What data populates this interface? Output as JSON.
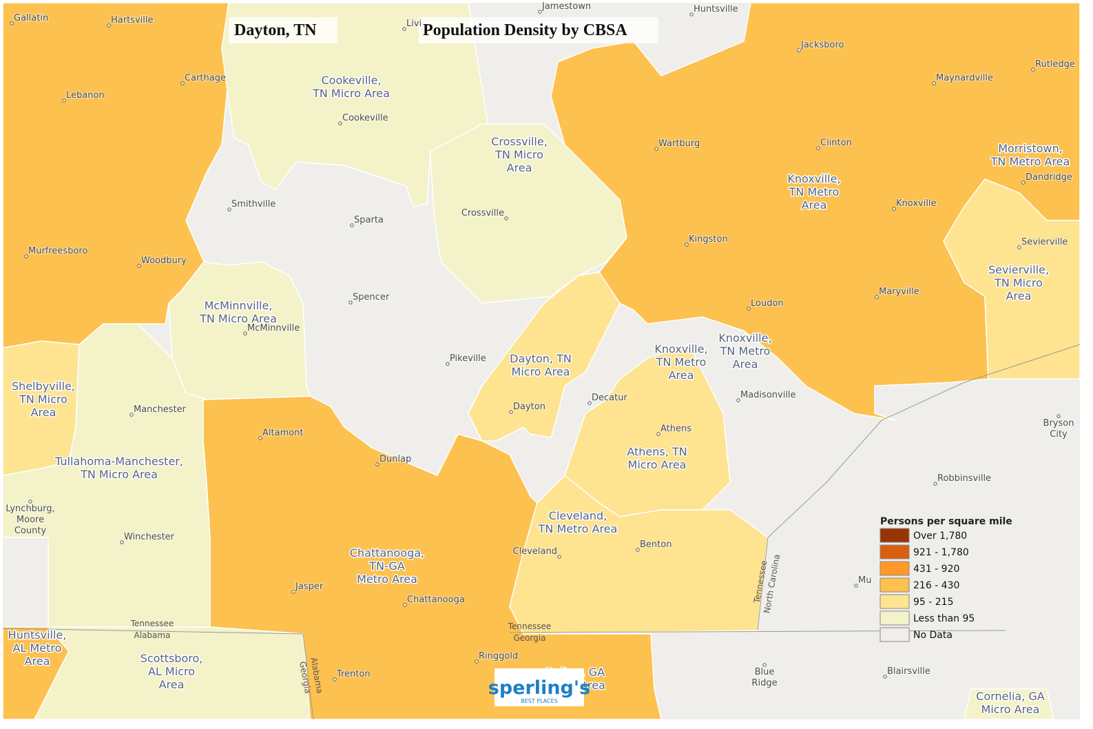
{
  "header": {
    "place": "Dayton, TN",
    "title": "Population Density by CBSA"
  },
  "legend": {
    "title": "Persons per square mile",
    "items": [
      {
        "label": "Over 1,780",
        "color": "#993404"
      },
      {
        "label": "921 - 1,780",
        "color": "#d95f0e"
      },
      {
        "label": "431 - 920",
        "color": "#fe9929"
      },
      {
        "label": "216 - 430",
        "color": "#fdc150"
      },
      {
        "label": "95 - 215",
        "color": "#fee391"
      },
      {
        "label": "Less than 95",
        "color": "#f3f2c9"
      },
      {
        "label": "No Data",
        "color": "#efeeea"
      }
    ]
  },
  "areas": [
    {
      "lines": [
        "Cookeville,",
        "TN Micro Area"
      ]
    },
    {
      "lines": [
        "Crossville,",
        "TN Micro",
        "Area"
      ]
    },
    {
      "lines": [
        "Knoxville,",
        "TN Metro",
        "Area"
      ]
    },
    {
      "lines": [
        "Morristown,",
        "TN Metro Area"
      ]
    },
    {
      "lines": [
        "Sevierville,",
        "TN Micro",
        "Area"
      ]
    },
    {
      "lines": [
        "McMinnville,",
        "TN Micro Area"
      ]
    },
    {
      "lines": [
        "Dayton, TN",
        "Micro Area"
      ]
    },
    {
      "lines": [
        "Knoxville,",
        "TN Metro",
        "Area"
      ]
    },
    {
      "lines": [
        "Knoxville,",
        "TN Metro",
        "Area"
      ]
    },
    {
      "lines": [
        "Shelbyville,",
        "TN Micro",
        "Area"
      ]
    },
    {
      "lines": [
        "Tullahoma-Manchester,",
        "TN Micro Area"
      ]
    },
    {
      "lines": [
        "Athens, TN",
        "Micro Area"
      ]
    },
    {
      "lines": [
        "Cleveland,",
        "TN Metro Area"
      ]
    },
    {
      "lines": [
        "Chattanooga,",
        "TN-GA",
        "Metro Area"
      ]
    },
    {
      "lines": [
        "Huntsville,",
        "AL Metro",
        "Area"
      ]
    },
    {
      "lines": [
        "Scottsboro,",
        "AL Micro",
        "Area"
      ]
    },
    {
      "lines": [
        "Dalton, GA",
        "Metro Area"
      ]
    },
    {
      "lines": [
        "Cornelia, GA",
        "Micro Area"
      ]
    }
  ],
  "cities": [
    {
      "lines": [
        "Gallatin"
      ]
    },
    {
      "lines": [
        "Hartsville"
      ]
    },
    {
      "lines": [
        "Jamestown"
      ]
    },
    {
      "lines": [
        "Huntsville"
      ]
    },
    {
      "lines": [
        "Livi"
      ]
    },
    {
      "lines": [
        "Jacksboro"
      ]
    },
    {
      "lines": [
        "Rutledge"
      ]
    },
    {
      "lines": [
        "Maynardville"
      ]
    },
    {
      "lines": [
        "Carthage"
      ]
    },
    {
      "lines": [
        "Lebanon"
      ]
    },
    {
      "lines": [
        "Cookeville"
      ]
    },
    {
      "lines": [
        "Wartburg"
      ]
    },
    {
      "lines": [
        "Clinton"
      ]
    },
    {
      "lines": [
        "Dandridge"
      ]
    },
    {
      "lines": [
        "Smithville"
      ]
    },
    {
      "lines": [
        "Sparta"
      ]
    },
    {
      "lines": [
        "Crossville"
      ]
    },
    {
      "lines": [
        "Knoxville"
      ]
    },
    {
      "lines": [
        "Kingston"
      ]
    },
    {
      "lines": [
        "Sevierville"
      ]
    },
    {
      "lines": [
        "Murfreesboro"
      ]
    },
    {
      "lines": [
        "Woodbury"
      ]
    },
    {
      "lines": [
        "Spencer"
      ]
    },
    {
      "lines": [
        "Loudon"
      ]
    },
    {
      "lines": [
        "Maryville"
      ]
    },
    {
      "lines": [
        "McMinnville"
      ]
    },
    {
      "lines": [
        "Pikeville"
      ]
    },
    {
      "lines": [
        "Decatur"
      ]
    },
    {
      "lines": [
        "Madisonville"
      ]
    },
    {
      "lines": [
        "Manchester"
      ]
    },
    {
      "lines": [
        "Dayton"
      ]
    },
    {
      "lines": [
        "Athens"
      ]
    },
    {
      "lines": [
        "Altamont"
      ]
    },
    {
      "lines": [
        "Dunlap"
      ]
    },
    {
      "lines": [
        "Robbinsville"
      ]
    },
    {
      "lines": [
        "Lynchburg,",
        "Moore",
        "County"
      ]
    },
    {
      "lines": [
        "Winchester"
      ]
    },
    {
      "lines": [
        "Benton"
      ]
    },
    {
      "lines": [
        "Cleveland"
      ]
    },
    {
      "lines": [
        "Jasper"
      ]
    },
    {
      "lines": [
        "Chattanooga"
      ]
    },
    {
      "lines": [
        "Mu"
      ]
    },
    {
      "lines": [
        "Ringgold"
      ]
    },
    {
      "lines": [
        "Trenton"
      ]
    },
    {
      "lines": [
        "Blue",
        "Ridge"
      ]
    },
    {
      "lines": [
        "Blairsville"
      ]
    },
    {
      "lines": [
        "Bryson",
        "City"
      ]
    }
  ],
  "state_labels": [
    {
      "lines": [
        "Tennessee",
        "Alabama"
      ]
    },
    {
      "lines": [
        "Tennessee",
        "Georgia"
      ]
    },
    {
      "lines": [
        "Georgia",
        "Alabama"
      ]
    },
    {
      "lines": [
        "Tennessee",
        "North Carolina"
      ]
    }
  ],
  "logo": {
    "name": "sperling's",
    "tagline": "BEST PLACES"
  }
}
